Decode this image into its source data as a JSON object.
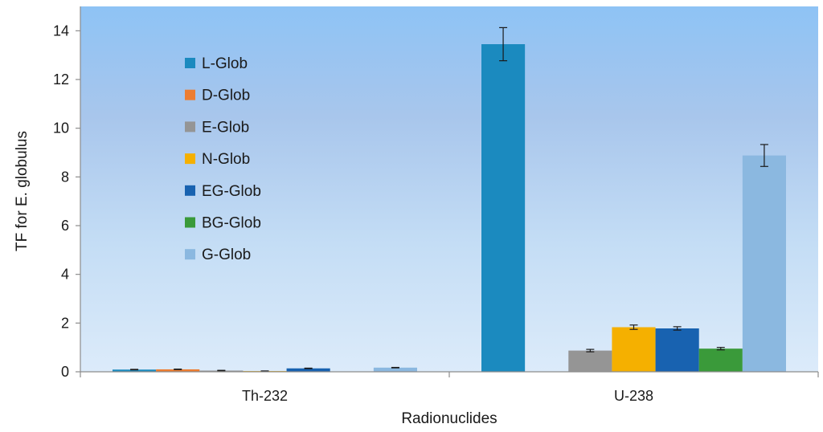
{
  "chart_data": {
    "type": "bar",
    "title": "",
    "xlabel": "Radionuclides",
    "ylabel": "TF for E. globulus",
    "ylim": [
      0,
      15
    ],
    "yticks": [
      0,
      2,
      4,
      6,
      8,
      10,
      12,
      14
    ],
    "grid": false,
    "legend_position": "top-left",
    "background": "vertical gradient, light blue to pale blue",
    "categories": [
      "Th-232",
      "U-238"
    ],
    "series": [
      {
        "name": "L-Glob",
        "color": "#1B8ABF",
        "values": [
          0.09,
          13.45
        ],
        "errors": [
          0.01,
          0.68
        ]
      },
      {
        "name": "D-Glob",
        "color": "#ED7D31",
        "values": [
          0.1,
          null
        ],
        "errors": [
          0.01,
          null
        ]
      },
      {
        "name": "E-Glob",
        "color": "#959595",
        "values": [
          0.05,
          0.87
        ],
        "errors": [
          0.01,
          0.05
        ]
      },
      {
        "name": "N-Glob",
        "color": "#F5B000",
        "values": [
          0.03,
          1.83
        ],
        "errors": [
          0.005,
          0.09
        ]
      },
      {
        "name": "EG-Glob",
        "color": "#1862B0",
        "values": [
          0.14,
          1.78
        ],
        "errors": [
          0.01,
          0.07
        ]
      },
      {
        "name": "BG-Glob",
        "color": "#3A9A3A",
        "values": [
          null,
          0.95
        ],
        "errors": [
          null,
          0.05
        ]
      },
      {
        "name": "G-Glob",
        "color": "#8BB8E0",
        "values": [
          0.17,
          8.88
        ],
        "errors": [
          0.01,
          0.45
        ]
      }
    ]
  }
}
